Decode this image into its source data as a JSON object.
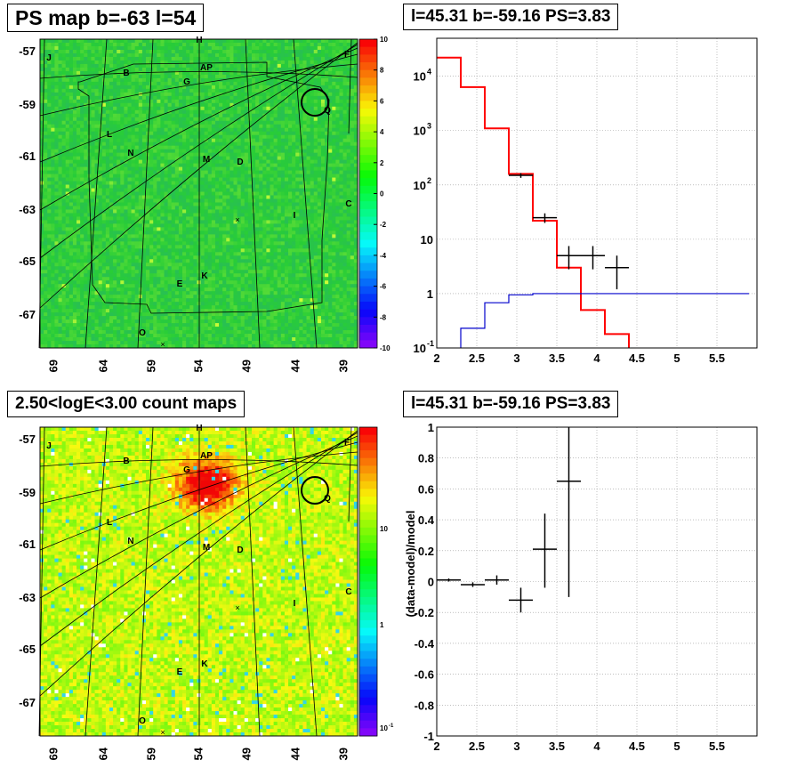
{
  "panels": [
    {
      "id": "ps-map",
      "title": "PS map b=-63 l=54",
      "chart_data": {
        "type": "heatmap",
        "title": "PS map b=-63 l=54",
        "x_tick_labels": [
          "69",
          "64",
          "59",
          "54",
          "49",
          "44",
          "39"
        ],
        "y_tick_labels": [
          "-57",
          "-59",
          "-61",
          "-63",
          "-65",
          "-67"
        ],
        "colorbar": {
          "scale": "linear",
          "range": [
            -10,
            10
          ],
          "tick_labels": [
            "10",
            "8",
            "6",
            "4",
            "2",
            "0",
            "-2",
            "-4",
            "-6",
            "-8",
            "-10"
          ]
        },
        "source_labels": [
          "J",
          "H",
          "F",
          "B",
          "AP",
          "G",
          "Q",
          "L",
          "N",
          "M",
          "D",
          "I",
          "C",
          "E",
          "K",
          "O"
        ],
        "colors": {
          "background_field": "#33e633"
        }
      }
    },
    {
      "id": "spectrum",
      "title": "l=45.31 b=-59.16 PS=3.83",
      "chart_data": {
        "type": "line",
        "title": "l=45.31 b=-59.16 PS=3.83",
        "xlabel": "",
        "ylabel": "",
        "xlim": [
          2,
          6
        ],
        "ylim": [
          0.1,
          50000
        ],
        "yscale": "log",
        "grid": true,
        "x_tick_labels": [
          "2",
          "2.5",
          "3",
          "3.5",
          "4",
          "4.5",
          "5",
          "5.5"
        ],
        "y_tick_labels": [
          {
            "base": "10",
            "exp": "-1"
          },
          {
            "base": "1",
            "exp": ""
          },
          {
            "base": "10",
            "exp": ""
          },
          {
            "base": "10",
            "exp": "2"
          },
          {
            "base": "10",
            "exp": "3"
          },
          {
            "base": "10",
            "exp": "4"
          }
        ],
        "bin_edges": [
          2.0,
          2.3,
          2.6,
          2.9,
          3.2,
          3.5,
          3.8,
          4.1,
          4.4,
          4.7,
          5.0,
          5.3,
          5.6,
          5.9
        ],
        "series": [
          {
            "style": "step",
            "color": "#ff0000",
            "values": [
              22000,
              6300,
              1100,
              160,
              22,
              3.0,
              0.5,
              0.18,
              0.095,
              0.095,
              0.095,
              0.095,
              0.095
            ]
          },
          {
            "style": "step",
            "color": "#0000cc",
            "values": [
              0.05,
              0.23,
              0.68,
              0.95,
              1.0,
              1.0,
              1.0,
              1.0,
              1.0,
              1.0,
              1.0,
              1.0,
              1.0
            ]
          },
          {
            "style": "errorbars",
            "color": "#000000",
            "points": [
              {
                "x": 3.05,
                "y": 150,
                "xerr": 0.15,
                "ylo": 135,
                "yhi": 165
              },
              {
                "x": 3.35,
                "y": 25,
                "xerr": 0.15,
                "ylo": 20,
                "yhi": 30
              },
              {
                "x": 3.65,
                "y": 5,
                "xerr": 0.15,
                "ylo": 2.8,
                "yhi": 7.5
              },
              {
                "x": 3.95,
                "y": 5,
                "xerr": 0.15,
                "ylo": 2.8,
                "yhi": 7.5
              },
              {
                "x": 4.25,
                "y": 3,
                "xerr": 0.15,
                "ylo": 1.2,
                "yhi": 5.0
              }
            ]
          }
        ]
      }
    },
    {
      "id": "count-map",
      "title": "2.50<logE<3.00 count maps",
      "chart_data": {
        "type": "heatmap",
        "title": "2.50<logE<3.00 count maps",
        "x_tick_labels": [
          "69",
          "64",
          "59",
          "54",
          "49",
          "44",
          "39"
        ],
        "y_tick_labels": [
          "-57",
          "-59",
          "-61",
          "-63",
          "-65",
          "-67"
        ],
        "colorbar": {
          "scale": "log",
          "tick_labels": [
            "10",
            "1",
            "10"
          ],
          "min_exp": "-1"
        },
        "source_labels": [
          "J",
          "H",
          "F",
          "B",
          "AP",
          "G",
          "Q",
          "L",
          "N",
          "M",
          "D",
          "I",
          "C",
          "E",
          "K",
          "O"
        ],
        "colors": {
          "background_field": "#8fe633",
          "hotspot": "#ff3300"
        }
      }
    },
    {
      "id": "residuals",
      "title": "l=45.31 b=-59.16 PS=3.83",
      "chart_data": {
        "type": "scatter",
        "title": "l=45.31 b=-59.16 PS=3.83",
        "xlabel": "",
        "ylabel": "(data-model)/model",
        "xlim": [
          2,
          6
        ],
        "ylim": [
          -1,
          1
        ],
        "grid": true,
        "x_tick_labels": [
          "2",
          "2.5",
          "3",
          "3.5",
          "4",
          "4.5",
          "5",
          "5.5"
        ],
        "y_tick_labels": [
          "1",
          "0.8",
          "0.6",
          "0.4",
          "0.2",
          "0",
          "-0.2",
          "-0.4",
          "-0.6",
          "-0.8",
          "-1"
        ],
        "series": [
          {
            "style": "errorbars",
            "color": "#000000",
            "points": [
              {
                "x": 2.15,
                "y": 0.01,
                "xerr": 0.15,
                "ylo": 0.0,
                "yhi": 0.02
              },
              {
                "x": 2.45,
                "y": -0.02,
                "xerr": 0.15,
                "ylo": -0.035,
                "yhi": -0.005
              },
              {
                "x": 2.75,
                "y": 0.01,
                "xerr": 0.15,
                "ylo": -0.02,
                "yhi": 0.04
              },
              {
                "x": 3.05,
                "y": -0.12,
                "xerr": 0.15,
                "ylo": -0.2,
                "yhi": -0.04
              },
              {
                "x": 3.35,
                "y": 0.21,
                "xerr": 0.15,
                "ylo": -0.04,
                "yhi": 0.44
              },
              {
                "x": 3.65,
                "y": 0.65,
                "xerr": 0.15,
                "ylo": -0.1,
                "yhi": 1.0
              }
            ]
          }
        ]
      }
    }
  ]
}
